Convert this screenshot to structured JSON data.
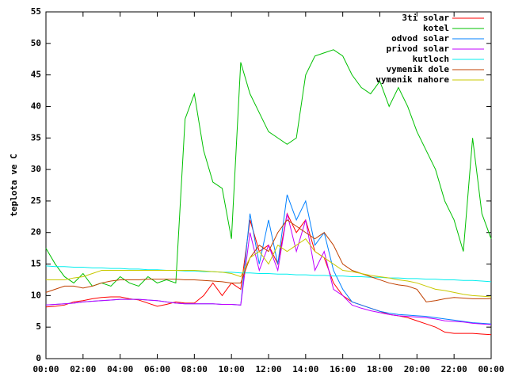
{
  "chart_data": {
    "type": "line",
    "ylabel": "teplota ve C",
    "x": [
      0,
      0.5,
      1,
      1.5,
      2,
      2.5,
      3,
      3.5,
      4,
      4.5,
      5,
      5.5,
      6,
      6.5,
      7,
      7.5,
      8,
      8.5,
      9,
      9.5,
      10,
      10.5,
      11,
      11.5,
      12,
      12.5,
      13,
      13.5,
      14,
      14.5,
      15,
      15.5,
      16,
      16.5,
      17,
      17.5,
      18,
      18.5,
      19,
      19.5,
      20,
      20.5,
      21,
      21.5,
      22,
      22.5,
      23,
      23.5,
      24
    ],
    "xlim": [
      0,
      24
    ],
    "xticks": [
      {
        "value": 0,
        "label": "00:00"
      },
      {
        "value": 2,
        "label": "02:00"
      },
      {
        "value": 4,
        "label": "04:00"
      },
      {
        "value": 6,
        "label": "06:00"
      },
      {
        "value": 8,
        "label": "08:00"
      },
      {
        "value": 10,
        "label": "10:00"
      },
      {
        "value": 12,
        "label": "12:00"
      },
      {
        "value": 14,
        "label": "14:00"
      },
      {
        "value": 16,
        "label": "16:00"
      },
      {
        "value": 18,
        "label": "18:00"
      },
      {
        "value": 20,
        "label": "20:00"
      },
      {
        "value": 22,
        "label": "22:00"
      },
      {
        "value": 24,
        "label": "00:00"
      }
    ],
    "ylim": [
      0,
      55
    ],
    "yticks": [
      0,
      5,
      10,
      15,
      20,
      25,
      30,
      35,
      40,
      45,
      50,
      55
    ],
    "legend": "top-right",
    "series": [
      {
        "name": "3ti solar",
        "color": "#ff0000",
        "values": [
          8.2,
          8.3,
          8.5,
          9,
          9.2,
          9.5,
          9.7,
          9.8,
          9.8,
          9.5,
          9.3,
          8.8,
          8.3,
          8.6,
          9,
          8.8,
          8.8,
          10,
          12,
          10,
          12,
          11,
          22,
          17,
          18,
          15,
          23,
          20,
          22,
          17,
          16,
          12,
          10,
          9,
          8.5,
          8,
          7.5,
          7,
          6.8,
          6.5,
          6,
          5.5,
          5,
          4.2,
          4,
          4,
          4,
          3.9,
          3.8
        ]
      },
      {
        "name": "kotel",
        "color": "#00c000",
        "values": [
          17.5,
          15,
          13,
          12,
          13.5,
          11.5,
          12,
          11.5,
          13,
          12,
          11.5,
          13,
          12,
          12.5,
          12,
          38,
          42,
          33,
          28,
          27,
          19,
          47,
          42,
          39,
          36,
          35,
          34,
          35,
          45,
          48,
          48.5,
          49,
          48,
          45,
          43,
          42,
          44,
          40,
          43,
          40,
          36,
          33,
          30,
          25,
          22,
          17,
          35,
          23,
          19
        ]
      },
      {
        "name": "odvod solar",
        "color": "#0080ff",
        "values": [
          8.5,
          8.6,
          8.7,
          8.8,
          9,
          9.1,
          9.2,
          9.3,
          9.4,
          9.4,
          9.4,
          9.3,
          9.2,
          9,
          8.8,
          8.7,
          8.7,
          8.7,
          8.7,
          8.6,
          8.6,
          8.5,
          23,
          15,
          22,
          15,
          26,
          22,
          25,
          18,
          20,
          14,
          11,
          9,
          8.5,
          8,
          7.5,
          7.2,
          7,
          6.9,
          6.8,
          6.7,
          6.5,
          6.3,
          6.1,
          5.9,
          5.7,
          5.6,
          5.5
        ]
      },
      {
        "name": "privod solar",
        "color": "#c000ff",
        "values": [
          8.5,
          8.6,
          8.7,
          8.8,
          9,
          9.1,
          9.2,
          9.3,
          9.4,
          9.4,
          9.4,
          9.3,
          9.2,
          9,
          8.8,
          8.7,
          8.7,
          8.7,
          8.7,
          8.6,
          8.6,
          8.5,
          20,
          14,
          18,
          14,
          23,
          17,
          22,
          14,
          17,
          11,
          10,
          8.5,
          8,
          7.6,
          7.3,
          7,
          6.8,
          6.7,
          6.6,
          6.5,
          6.3,
          6,
          5.9,
          5.8,
          5.6,
          5.5,
          5.4
        ]
      },
      {
        "name": "kutloch",
        "color": "#00eeee",
        "values": [
          14.7,
          14.6,
          14.6,
          14.5,
          14.5,
          14.4,
          14.4,
          14.3,
          14.3,
          14.2,
          14.2,
          14.1,
          14.1,
          14,
          14,
          13.9,
          13.9,
          13.8,
          13.8,
          13.7,
          13.7,
          13.6,
          13.6,
          13.5,
          13.5,
          13.4,
          13.4,
          13.3,
          13.3,
          13.2,
          13.2,
          13.1,
          13.1,
          13,
          13,
          12.9,
          12.9,
          12.8,
          12.8,
          12.7,
          12.7,
          12.6,
          12.6,
          12.5,
          12.5,
          12.4,
          12.4,
          12.3,
          12.2
        ]
      },
      {
        "name": "vymenik dole",
        "color": "#c04000",
        "values": [
          10.5,
          11,
          11.5,
          11.5,
          11.2,
          11.5,
          12,
          12.3,
          12.5,
          12.5,
          12.5,
          12.6,
          12.6,
          12.6,
          12.6,
          12.5,
          12.5,
          12.4,
          12.3,
          12.2,
          12,
          12,
          16,
          18,
          17,
          20,
          22,
          21,
          20,
          19,
          20,
          18,
          15,
          14,
          13.5,
          13,
          12.5,
          12,
          11.7,
          11.5,
          11,
          9,
          9.2,
          9.5,
          9.7,
          9.6,
          9.5,
          9.5,
          9.5
        ]
      },
      {
        "name": "vymenik nahore",
        "color": "#c8c800",
        "values": [
          12.5,
          12.5,
          12.5,
          12.8,
          13,
          13.5,
          14,
          14,
          14,
          14,
          14,
          14,
          14,
          14,
          14,
          14,
          14,
          13.9,
          13.8,
          13.7,
          13.5,
          13,
          16,
          17,
          15,
          18,
          17,
          18,
          19,
          17,
          16,
          15,
          14,
          13.8,
          13.5,
          13.2,
          13,
          12.8,
          12.5,
          12.3,
          12,
          11.5,
          11,
          10.8,
          10.5,
          10.2,
          10,
          9.9,
          9.8
        ]
      }
    ]
  }
}
